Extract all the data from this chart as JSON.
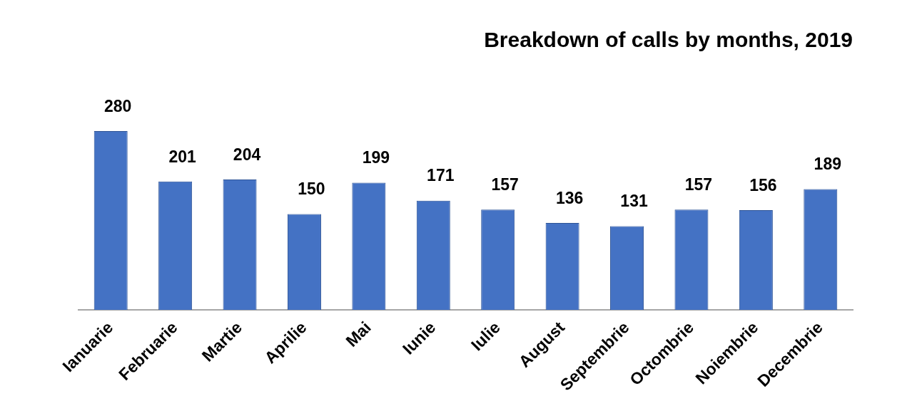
{
  "chart_data": {
    "type": "bar",
    "title": "Breakdown of calls by months, 2019",
    "categories": [
      "Ianuarie",
      "Februarie",
      "Martie",
      "Aprilie",
      "Mai",
      "Iunie",
      "Iulie",
      "August",
      "Septembrie",
      "Octombrie",
      "Noiembrie",
      "Decembrie"
    ],
    "values": [
      280,
      201,
      204,
      150,
      199,
      171,
      157,
      136,
      131,
      157,
      156,
      189
    ],
    "color": "#4472c4",
    "data_labels": true,
    "tick_labels": "x",
    "grid": false,
    "legend": false
  }
}
